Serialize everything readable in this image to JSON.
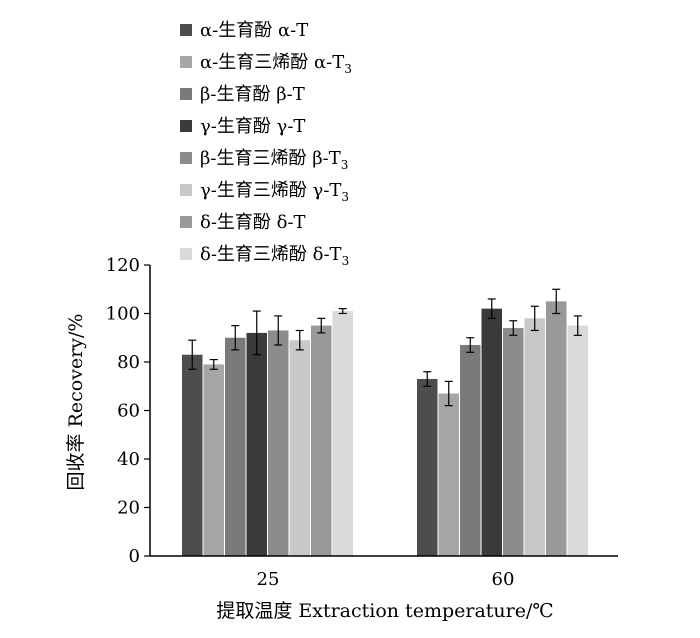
{
  "chart_data": {
    "type": "bar",
    "title": "",
    "xlabel": "提取温度  Extraction temperature/℃",
    "ylabel": "回收率  Recovery/%",
    "ylim": [
      0,
      120
    ],
    "yticks": [
      0,
      20,
      40,
      60,
      80,
      100,
      120
    ],
    "categories": [
      "25",
      "60"
    ],
    "grid": false,
    "legend_position": "top",
    "series": [
      {
        "name": "α-生育酚  α-T",
        "label": {
          "cn": "α-生育酚  α-T",
          "sub": ""
        },
        "color": "#4d4d4d",
        "values": [
          83,
          73
        ],
        "errors": [
          6,
          3
        ]
      },
      {
        "name": "α-生育三烯酚 α-T3",
        "label": {
          "cn": "α-生育三烯酚 α-T",
          "sub": "3"
        },
        "color": "#a6a6a6",
        "values": [
          79,
          67
        ],
        "errors": [
          2,
          5
        ]
      },
      {
        "name": "β-生育酚  β-T",
        "label": {
          "cn": "β-生育酚  β-T",
          "sub": ""
        },
        "color": "#7a7a7a",
        "values": [
          90,
          87
        ],
        "errors": [
          5,
          3
        ]
      },
      {
        "name": "γ-生育酚  γ-T",
        "label": {
          "cn": "γ-生育酚  γ-T",
          "sub": ""
        },
        "color": "#3a3a3a",
        "values": [
          92,
          102
        ],
        "errors": [
          9,
          4
        ]
      },
      {
        "name": "β-生育三烯酚 β-T3",
        "label": {
          "cn": "β-生育三烯酚 β-T",
          "sub": "3"
        },
        "color": "#8c8c8c",
        "values": [
          93,
          94
        ],
        "errors": [
          6,
          3
        ]
      },
      {
        "name": "γ-生育三烯酚 γ-T3",
        "label": {
          "cn": "γ-生育三烯酚 γ-T",
          "sub": "3"
        },
        "color": "#c8c8c8",
        "values": [
          89,
          98
        ],
        "errors": [
          4,
          5
        ]
      },
      {
        "name": "δ-生育酚 δ-T",
        "label": {
          "cn": "δ-生育酚 δ-T",
          "sub": ""
        },
        "color": "#999999",
        "values": [
          95,
          105
        ],
        "errors": [
          3,
          5
        ]
      },
      {
        "name": "δ-生育三烯酚 δ-T3",
        "label": {
          "cn": "δ-生育三烯酚 δ-T",
          "sub": "3"
        },
        "color": "#d9d9d9",
        "values": [
          101,
          95
        ],
        "errors": [
          1,
          4
        ]
      }
    ]
  }
}
